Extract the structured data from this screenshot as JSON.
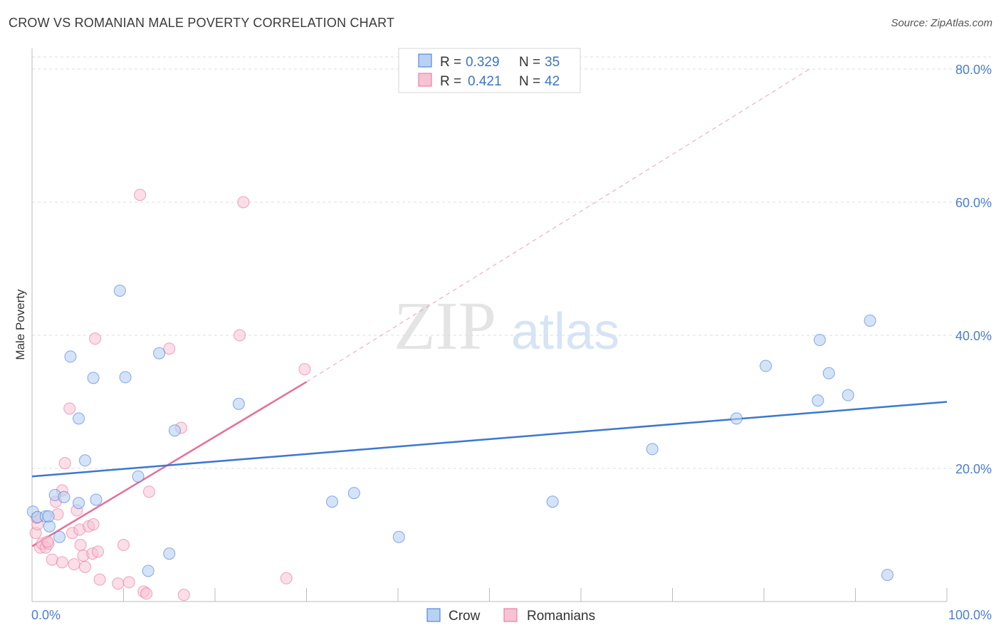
{
  "title": "CROW VS ROMANIAN MALE POVERTY CORRELATION CHART",
  "source": "Source: ZipAtlas.com",
  "watermark": {
    "zip": "ZIP",
    "atlas": "atlas"
  },
  "colors": {
    "crow": "#3b78d0",
    "crow_fill": "#b9d1f3",
    "romanians": "#e66e98",
    "romanians_fill": "#f7c3d3",
    "tick": "#4a7fcf",
    "grid": "#dddddd"
  },
  "legend": {
    "r_label": "R =",
    "n_label": "N =",
    "crow": {
      "r": "0.329",
      "n": "35"
    },
    "romanians": {
      "r": "0.421",
      "n": "42"
    }
  },
  "bottom_legend": {
    "crow": "Crow",
    "romanians": "Romanians"
  },
  "chart_data": {
    "type": "scatter",
    "title": "CROW VS ROMANIAN MALE POVERTY CORRELATION CHART",
    "xlabel": "",
    "ylabel": "Male Poverty",
    "xlim": [
      0,
      100
    ],
    "ylim": [
      0,
      80
    ],
    "x_tick_labels": [
      {
        "value": 0,
        "label": "0.0%"
      },
      {
        "value": 100,
        "label": "100.0%"
      }
    ],
    "y_tick_labels": [
      {
        "value": 20,
        "label": "20.0%"
      },
      {
        "value": 40,
        "label": "40.0%"
      },
      {
        "value": 60,
        "label": "60.0%"
      },
      {
        "value": 80,
        "label": "80.0%"
      }
    ],
    "series": [
      {
        "name": "Crow",
        "points": [
          [
            0.1,
            13.5
          ],
          [
            0.6,
            12.7
          ],
          [
            1.5,
            12.8
          ],
          [
            1.9,
            11.3
          ],
          [
            2.5,
            16.0
          ],
          [
            3.0,
            9.7
          ],
          [
            3.5,
            15.7
          ],
          [
            4.2,
            36.8
          ],
          [
            5.1,
            14.8
          ],
          [
            5.1,
            27.5
          ],
          [
            5.8,
            21.2
          ],
          [
            6.7,
            33.6
          ],
          [
            7.0,
            15.3
          ],
          [
            9.6,
            46.7
          ],
          [
            10.2,
            33.7
          ],
          [
            11.6,
            18.8
          ],
          [
            12.7,
            4.6
          ],
          [
            13.9,
            37.3
          ],
          [
            15.0,
            7.2
          ],
          [
            15.6,
            25.7
          ],
          [
            22.6,
            29.7
          ],
          [
            32.8,
            15.0
          ],
          [
            35.2,
            16.3
          ],
          [
            40.1,
            9.7
          ],
          [
            56.9,
            15.0
          ],
          [
            67.8,
            22.9
          ],
          [
            77.0,
            27.5
          ],
          [
            80.2,
            35.4
          ],
          [
            85.9,
            30.2
          ],
          [
            86.1,
            39.3
          ],
          [
            87.1,
            34.3
          ],
          [
            89.2,
            31.0
          ],
          [
            91.6,
            42.2
          ],
          [
            93.5,
            4.0
          ],
          [
            1.8,
            12.8
          ]
        ],
        "trendline": {
          "x": [
            0,
            100
          ],
          "y": [
            18.8,
            30.0
          ]
        }
      },
      {
        "name": "Romanians",
        "points": [
          [
            0.4,
            10.3
          ],
          [
            0.6,
            11.6
          ],
          [
            0.9,
            8.1
          ],
          [
            1.1,
            8.7
          ],
          [
            1.5,
            8.1
          ],
          [
            1.8,
            8.7
          ],
          [
            2.2,
            6.3
          ],
          [
            2.6,
            15.0
          ],
          [
            2.8,
            13.1
          ],
          [
            3.3,
            16.7
          ],
          [
            3.3,
            5.9
          ],
          [
            3.6,
            20.8
          ],
          [
            4.1,
            29.0
          ],
          [
            4.4,
            10.3
          ],
          [
            4.6,
            5.6
          ],
          [
            4.9,
            13.7
          ],
          [
            5.2,
            10.8
          ],
          [
            5.3,
            8.5
          ],
          [
            5.6,
            6.9
          ],
          [
            5.8,
            5.2
          ],
          [
            6.2,
            11.3
          ],
          [
            6.6,
            7.2
          ],
          [
            6.7,
            11.6
          ],
          [
            6.9,
            39.5
          ],
          [
            7.2,
            7.5
          ],
          [
            7.4,
            3.3
          ],
          [
            9.4,
            2.7
          ],
          [
            10.0,
            8.5
          ],
          [
            10.6,
            2.9
          ],
          [
            11.8,
            61.1
          ],
          [
            12.2,
            1.5
          ],
          [
            12.5,
            1.2
          ],
          [
            12.8,
            16.5
          ],
          [
            15.0,
            38.0
          ],
          [
            16.3,
            26.1
          ],
          [
            16.6,
            1.0
          ],
          [
            22.7,
            40.0
          ],
          [
            23.1,
            60.0
          ],
          [
            27.8,
            3.5
          ],
          [
            29.8,
            34.9
          ],
          [
            0.5,
            12.6
          ],
          [
            1.7,
            9.0
          ]
        ],
        "trendline": {
          "x": [
            0,
            30
          ],
          "y": [
            8.3,
            33.0
          ]
        },
        "trendline_dashed": {
          "x": [
            30,
            85
          ],
          "y": [
            33.0,
            80.0
          ]
        }
      }
    ]
  }
}
